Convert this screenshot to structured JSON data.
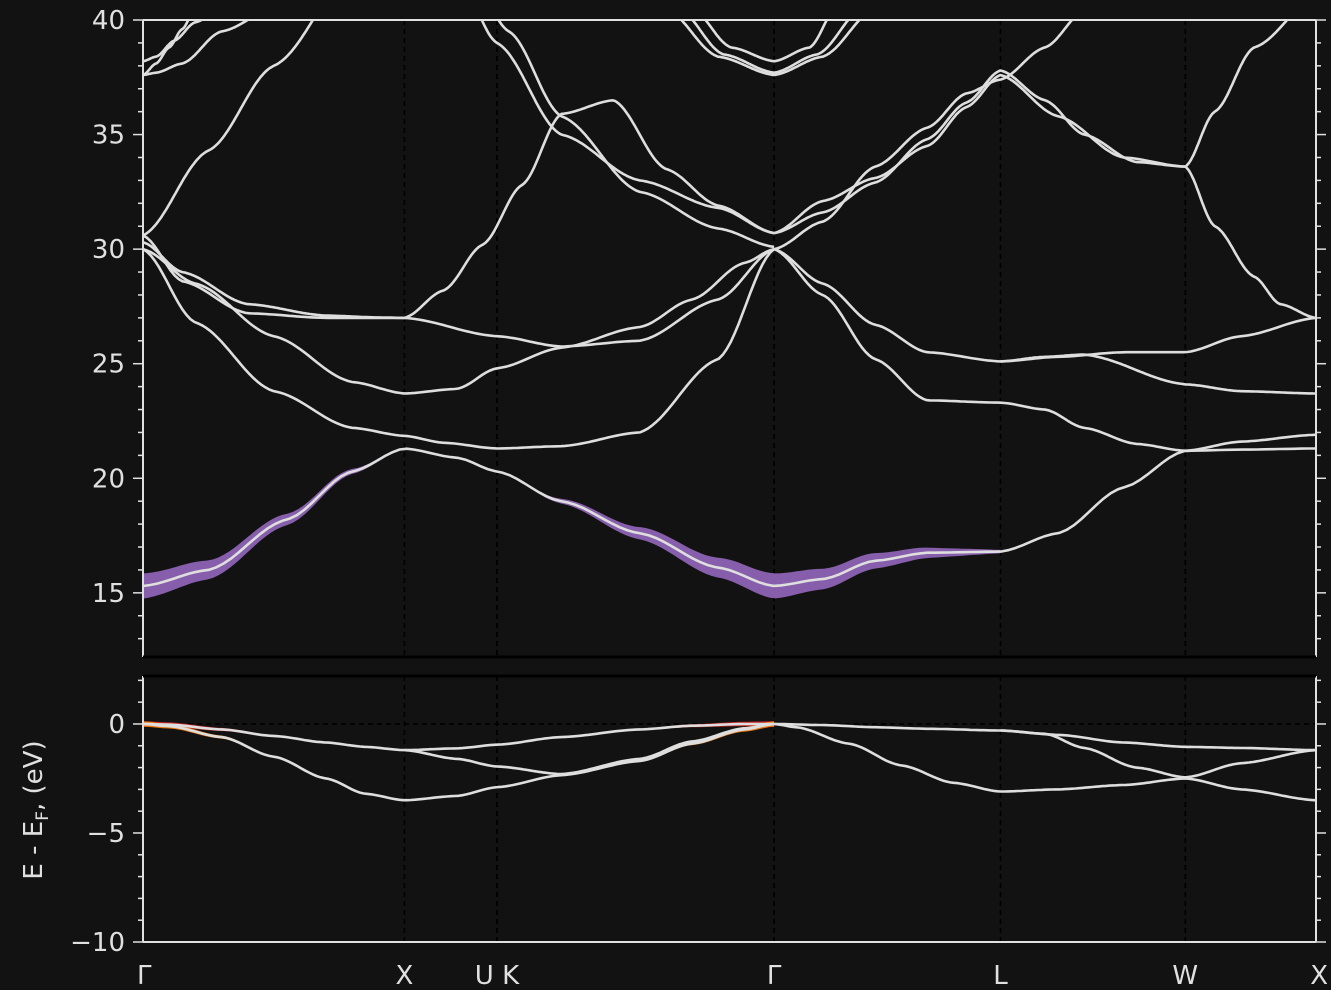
{
  "chart_data": {
    "type": "line",
    "ylabel": "E - E",
    "ylabel_sub": "F",
    "ylabel_suffix": ", (eV)",
    "kpath": [
      {
        "label": "Γ",
        "x": 0.0
      },
      {
        "label": "X",
        "x": 1.0
      },
      {
        "label": "U",
        "x": 1.354
      },
      {
        "label": "K",
        "x": 1.354
      },
      {
        "label": "Γ",
        "x": 2.414
      },
      {
        "label": "L",
        "x": 3.28
      },
      {
        "label": "W",
        "x": 3.987
      },
      {
        "label": "X",
        "x": 4.487
      }
    ],
    "tick_label_text": [
      "Γ",
      "X",
      "U K",
      "Γ",
      "L",
      "W",
      "X"
    ],
    "tick_label_x": [
      0.0,
      1.0,
      1.354,
      2.414,
      3.28,
      3.987,
      4.487
    ],
    "upper_panel": {
      "ylim": [
        12.2,
        40
      ],
      "yticks": [
        15,
        20,
        25,
        30,
        35,
        40
      ],
      "minor_step": 1
    },
    "lower_panel": {
      "ylim": [
        -10,
        2.2
      ],
      "yticks": [
        -10,
        -5,
        0
      ],
      "minor_step": 1,
      "fermi_level": 0
    },
    "bands": [
      {
        "x": [
          0,
          0.1,
          0.3,
          0.5,
          0.7,
          0.85,
          1.0,
          1.2,
          1.354,
          1.6,
          1.9,
          2.1,
          2.3,
          2.414
        ],
        "y": [
          0.0,
          -0.03,
          -0.25,
          -0.55,
          -0.85,
          -1.05,
          -1.2,
          -1.12,
          -0.95,
          -0.6,
          -0.25,
          -0.08,
          0,
          0
        ]
      },
      {
        "x": [
          0,
          0.1,
          0.3,
          0.5,
          0.7,
          0.85,
          1.0,
          1.2,
          1.354,
          1.6,
          1.9,
          2.1,
          2.3,
          2.414
        ],
        "y": [
          0.0,
          -0.1,
          -0.6,
          -1.5,
          -2.5,
          -3.2,
          -3.5,
          -3.3,
          -2.9,
          -2.35,
          -1.7,
          -0.9,
          -0.25,
          0
        ]
      },
      {
        "x": [
          1.0,
          1.2,
          1.354,
          1.6,
          1.9,
          2.1,
          2.3,
          2.414
        ],
        "y": [
          -1.2,
          -1.6,
          -1.95,
          -2.3,
          -1.6,
          -0.8,
          -0.2,
          0
        ]
      },
      {
        "x": [
          2.414,
          2.6,
          2.8,
          3.0,
          3.28,
          3.5,
          3.75,
          3.987,
          4.2,
          4.487
        ],
        "y": [
          0,
          -0.05,
          -0.15,
          -0.22,
          -0.3,
          -0.5,
          -0.85,
          -1.05,
          -1.1,
          -1.2
        ]
      },
      {
        "x": [
          2.414,
          2.5,
          2.7,
          2.9,
          3.1,
          3.28,
          3.5,
          3.75,
          3.987,
          4.2,
          4.487
        ],
        "y": [
          0,
          -0.15,
          -0.9,
          -1.9,
          -2.7,
          -3.1,
          -3.0,
          -2.8,
          -2.5,
          -3.0,
          -3.5
        ]
      },
      {
        "x": [
          3.28,
          3.45,
          3.6,
          3.8,
          3.987,
          4.2,
          4.487
        ],
        "y": [
          -0.3,
          -0.45,
          -1.1,
          -2.0,
          -2.45,
          -1.8,
          -1.2
        ]
      },
      {
        "x": [
          0,
          0.25,
          0.55,
          0.8,
          1.0,
          1.2,
          1.354,
          1.6,
          1.9,
          2.2,
          2.414,
          2.6,
          2.8,
          3.0,
          3.28,
          3.5,
          3.75,
          3.987,
          4.2,
          4.487
        ],
        "y": [
          15.3,
          16.0,
          18.2,
          20.3,
          21.3,
          20.9,
          20.3,
          19.0,
          17.6,
          16.1,
          15.3,
          15.6,
          16.4,
          16.75,
          16.8,
          17.6,
          19.6,
          21.2,
          21.25,
          21.3
        ]
      },
      {
        "x": [
          0,
          0.2,
          0.5,
          0.8,
          1.0,
          1.2,
          1.354,
          1.6,
          1.9,
          2.1,
          2.3,
          2.414
        ],
        "y": [
          30.0,
          28.5,
          26.2,
          24.2,
          23.7,
          23.9,
          24.8,
          25.7,
          26.6,
          27.8,
          29.4,
          30.0
        ]
      },
      {
        "x": [
          0,
          0.2,
          0.5,
          0.8,
          1.0,
          1.15,
          1.354,
          1.6,
          1.9,
          2.2,
          2.414
        ],
        "y": [
          30.0,
          26.8,
          23.8,
          22.2,
          21.85,
          21.55,
          21.3,
          21.4,
          22.0,
          25.2,
          30.0
        ]
      },
      {
        "x": [
          0,
          0.15,
          0.4,
          0.7,
          1.0,
          1.354,
          1.6,
          1.9,
          2.2,
          2.414
        ],
        "y": [
          30.6,
          28.6,
          27.2,
          27.0,
          27.0,
          26.2,
          25.75,
          26.0,
          27.8,
          30.0
        ]
      },
      {
        "x": [
          0,
          0.15,
          0.4,
          0.7,
          0.9,
          1.0
        ],
        "y": [
          30.3,
          29.0,
          27.6,
          27.1,
          27.02,
          27.0
        ]
      },
      {
        "x": [
          1.0,
          1.15,
          1.3,
          1.45,
          1.6,
          1.8,
          2.0,
          2.2,
          2.414
        ],
        "y": [
          27.0,
          28.2,
          30.2,
          32.8,
          35.9,
          36.5,
          33.5,
          31.9,
          30.7
        ]
      },
      {
        "x": [
          0,
          0.25,
          0.5,
          0.8,
          1.0
        ],
        "y": [
          30.6,
          34.3,
          38.0,
          42.0,
          44.0
        ]
      },
      {
        "x": [
          1.2,
          1.354,
          1.6,
          1.9,
          2.2,
          2.414
        ],
        "y": [
          42.0,
          39.0,
          35.0,
          33.0,
          31.8,
          30.7
        ]
      },
      {
        "x": [
          1.25,
          1.4,
          1.6,
          1.9,
          2.2,
          2.414
        ],
        "y": [
          42.0,
          39.5,
          35.8,
          32.5,
          30.9,
          30.1
        ]
      },
      {
        "x": [
          2.414,
          2.6,
          2.8,
          3.0,
          3.28,
          3.5,
          3.75,
          3.987,
          4.2,
          4.487
        ],
        "y": [
          30.0,
          28.5,
          26.7,
          25.5,
          25.1,
          25.3,
          25.5,
          25.5,
          26.2,
          27.0
        ]
      },
      {
        "x": [
          2.414,
          2.6,
          2.8,
          3.0,
          3.28,
          3.45,
          3.6,
          3.8,
          3.987,
          4.2,
          4.487
        ],
        "y": [
          30.0,
          28.0,
          25.2,
          23.4,
          23.3,
          23.0,
          22.2,
          21.5,
          21.2,
          21.6,
          21.9
        ]
      },
      {
        "x": [
          3.28,
          3.45,
          3.6,
          3.987,
          4.2,
          4.487
        ],
        "y": [
          25.1,
          25.3,
          25.4,
          24.1,
          23.8,
          23.7
        ]
      },
      {
        "x": [
          2.414,
          2.6,
          2.8,
          3.0,
          3.15,
          3.28,
          3.5,
          3.75,
          3.987
        ],
        "y": [
          30.7,
          32.1,
          33.1,
          34.5,
          36.2,
          37.6,
          35.8,
          34.0,
          33.6
        ]
      },
      {
        "x": [
          2.414,
          2.6,
          2.8,
          3.0,
          3.15,
          3.28,
          3.45,
          3.6,
          3.8,
          3.987
        ],
        "y": [
          30.7,
          31.6,
          32.9,
          34.8,
          36.4,
          37.8,
          36.5,
          35.0,
          33.8,
          33.6
        ]
      },
      {
        "x": [
          2.414,
          2.6,
          2.8,
          3.0,
          3.15,
          3.28,
          3.45,
          3.6
        ],
        "y": [
          30.0,
          31.2,
          33.6,
          35.3,
          36.8,
          37.4,
          38.8,
          40.4
        ]
      },
      {
        "x": [
          3.987,
          4.1,
          4.25,
          4.487
        ],
        "y": [
          33.6,
          36.0,
          38.8,
          41.0
        ]
      },
      {
        "x": [
          3.987,
          4.1,
          4.25,
          4.35,
          4.487
        ],
        "y": [
          33.6,
          31.0,
          28.8,
          27.6,
          27.0
        ]
      },
      {
        "x": [
          0,
          0.05,
          0.15,
          0.3,
          0.5
        ],
        "y": [
          37.6,
          37.7,
          38.1,
          39.5,
          40.5
        ]
      },
      {
        "x": [
          0,
          0.05,
          0.1,
          0.15,
          0.2
        ],
        "y": [
          37.6,
          38.1,
          38.8,
          39.6,
          40.5
        ]
      },
      {
        "x": [
          0,
          0.05,
          0.12,
          0.2,
          0.3
        ],
        "y": [
          38.2,
          38.4,
          39.1,
          39.9,
          40.5
        ]
      },
      {
        "x": [
          2.1,
          2.25,
          2.414,
          2.55,
          2.65
        ],
        "y": [
          40.5,
          38.8,
          38.2,
          38.8,
          40.5
        ]
      },
      {
        "x": [
          2.0,
          2.2,
          2.414,
          2.6,
          2.8
        ],
        "y": [
          40.5,
          38.4,
          37.6,
          38.4,
          40.5
        ]
      },
      {
        "x": [
          2.05,
          2.22,
          2.414,
          2.58,
          2.75
        ],
        "y": [
          40.5,
          38.5,
          37.7,
          38.5,
          40.5
        ]
      }
    ],
    "projections": [
      {
        "color": "#9467bd",
        "band": 6,
        "start_width": 1.1,
        "fade_at": 1.0,
        "x_range": [
          0,
          3.28
        ]
      },
      {
        "color": "#d62728",
        "band": 0,
        "start_width": 0.25,
        "fade_at": 0.7,
        "x_range": [
          0,
          4.487
        ]
      },
      {
        "color": "#ff7f0e",
        "band": 1,
        "start_width": 0.25,
        "fade_at": 0.7,
        "x_range": [
          0,
          3.3
        ]
      },
      {
        "color": "#2ca02c",
        "band": 2,
        "start_width": 0.12,
        "fade_at": 0.6,
        "x_range": [
          1.0,
          2.414
        ]
      },
      {
        "color": "#2ca02c",
        "band": 5,
        "start_width": 0.12,
        "fade_at": 0.6,
        "x_range": [
          3.28,
          3.987
        ]
      }
    ],
    "colors": {
      "background": "#121212",
      "band_line": "#dedede",
      "axis": "#e0e0e0",
      "divider": "#000000"
    }
  }
}
